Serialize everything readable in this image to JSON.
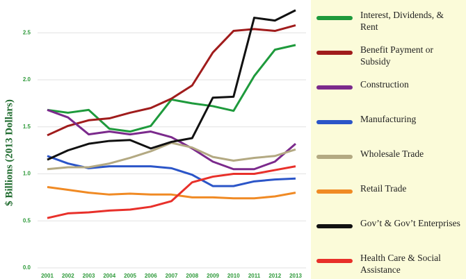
{
  "chart_data": {
    "type": "line",
    "y_label": "$ Billions (2013 Dollars)",
    "categories": [
      "2001",
      "2002",
      "2003",
      "2004",
      "2005",
      "2006",
      "2007",
      "2008",
      "2009",
      "2010",
      "2011",
      "2012",
      "2013"
    ],
    "ylim": [
      0,
      2.8
    ],
    "yticks": [
      {
        "value": 0,
        "label": "0.0"
      },
      0.5,
      {
        "value": 1,
        "label": "1.0"
      },
      1.5,
      {
        "value": 2,
        "label": "2.0"
      },
      2.5
    ],
    "grid": true,
    "legend": "right",
    "series": [
      {
        "name": "Interest, Dividends, & Rent",
        "color": "#1e9a3c",
        "values": [
          1.68,
          1.65,
          1.68,
          1.48,
          1.45,
          1.51,
          1.79,
          1.75,
          1.72,
          1.67,
          2.04,
          2.32,
          2.37
        ]
      },
      {
        "name": "Benefit Payment or Subsidy",
        "color": "#a01c1c",
        "values": [
          1.41,
          1.51,
          1.57,
          1.59,
          1.65,
          1.7,
          1.8,
          1.94,
          2.29,
          2.52,
          2.54,
          2.52,
          2.58
        ]
      },
      {
        "name": "Construction",
        "color": "#7b2a8c",
        "values": [
          1.68,
          1.6,
          1.42,
          1.45,
          1.42,
          1.45,
          1.39,
          1.27,
          1.13,
          1.05,
          1.05,
          1.13,
          1.32
        ]
      },
      {
        "name": "Manufacturing",
        "color": "#2b55c8",
        "values": [
          1.19,
          1.11,
          1.06,
          1.08,
          1.08,
          1.08,
          1.06,
          0.99,
          0.87,
          0.87,
          0.92,
          0.94,
          0.95
        ]
      },
      {
        "name": "Wholesale Trade",
        "color": "#b3a982",
        "values": [
          1.05,
          1.07,
          1.07,
          1.11,
          1.17,
          1.24,
          1.33,
          1.28,
          1.18,
          1.14,
          1.17,
          1.19,
          1.26
        ]
      },
      {
        "name": "Retail Trade",
        "color": "#f08a24",
        "values": [
          0.86,
          0.83,
          0.8,
          0.78,
          0.79,
          0.78,
          0.78,
          0.75,
          0.75,
          0.74,
          0.74,
          0.76,
          0.8
        ]
      },
      {
        "name": "Gov’t & Gov’t Enterprises",
        "color": "#111111",
        "values": [
          1.15,
          1.25,
          1.32,
          1.35,
          1.36,
          1.27,
          1.34,
          1.38,
          1.81,
          1.82,
          2.66,
          2.63,
          2.74
        ]
      },
      {
        "name": "Health Care & Social Assistance",
        "color": "#e8302a",
        "values": [
          0.53,
          0.58,
          0.59,
          0.61,
          0.62,
          0.65,
          0.71,
          0.91,
          0.97,
          1.0,
          1.0,
          1.04,
          1.08
        ]
      }
    ]
  }
}
